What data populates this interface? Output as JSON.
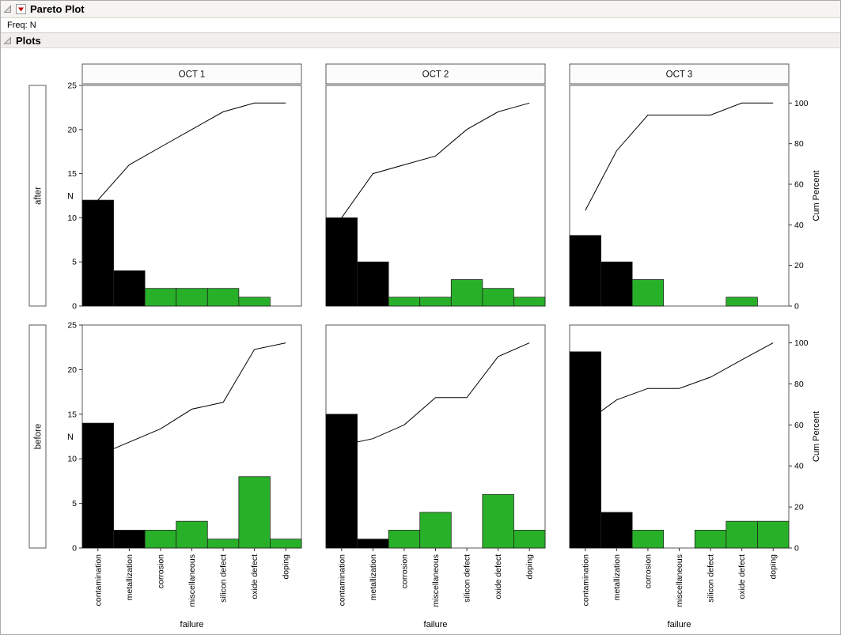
{
  "header": {
    "title": "Pareto Plot"
  },
  "freq": {
    "label": "Freq: N"
  },
  "plots_section": {
    "label": "Plots"
  },
  "chart_data": {
    "type": "bar",
    "title": "Pareto Plot",
    "subtitle": "Pareto chart small-multiples grid: rows = group (after/before), columns = date (OCT 1-3)",
    "categories": [
      "contamination",
      "metallization",
      "corrosion",
      "miscellaneous",
      "silicon defect",
      "oxide defect",
      "doping"
    ],
    "xlabel": "failure",
    "ylabel": "N",
    "y2label": "Cum Percent",
    "ylim": [
      0,
      25
    ],
    "yticks": [
      0,
      5,
      10,
      15,
      20,
      25
    ],
    "y2ticks": [
      0,
      20,
      40,
      60,
      80,
      100
    ],
    "y2_100_at_N": 23,
    "rows": [
      "after",
      "before"
    ],
    "cols": [
      "OCT 1",
      "OCT 2",
      "OCT 3"
    ],
    "black_bar_count": 2,
    "legend": "none",
    "grid": "off",
    "colors": {
      "bar_primary": "#000000",
      "bar_secondary": "#29b029",
      "line": "#000000",
      "frame": "#5a5a5a"
    },
    "panels": [
      {
        "row": "after",
        "col": "OCT 1",
        "values": [
          12,
          4,
          2,
          2,
          2,
          1,
          0
        ],
        "total": 23,
        "cum_percent": [
          52.2,
          69.6,
          78.3,
          87.0,
          95.7,
          100.0,
          100.0
        ]
      },
      {
        "row": "after",
        "col": "OCT 2",
        "values": [
          10,
          5,
          1,
          1,
          3,
          2,
          1
        ],
        "total": 23,
        "cum_percent": [
          43.5,
          65.2,
          69.6,
          73.9,
          87.0,
          95.7,
          100.0
        ]
      },
      {
        "row": "after",
        "col": "OCT 3",
        "values": [
          8,
          5,
          3,
          0,
          0,
          1,
          0
        ],
        "total": 17,
        "cum_percent": [
          47.1,
          76.5,
          94.1,
          94.1,
          94.1,
          100.0,
          100.0
        ]
      },
      {
        "row": "before",
        "col": "OCT 1",
        "values": [
          14,
          2,
          2,
          3,
          1,
          8,
          1
        ],
        "total": 31,
        "cum_percent": [
          45.2,
          51.6,
          58.1,
          67.7,
          71.0,
          96.8,
          100.0
        ]
      },
      {
        "row": "before",
        "col": "OCT 2",
        "values": [
          15,
          1,
          2,
          4,
          0,
          6,
          2
        ],
        "total": 30,
        "cum_percent": [
          50.0,
          53.3,
          60.0,
          73.3,
          73.3,
          93.3,
          100.0
        ]
      },
      {
        "row": "before",
        "col": "OCT 3",
        "values": [
          22,
          4,
          2,
          0,
          2,
          3,
          3
        ],
        "total": 36,
        "cum_percent": [
          61.1,
          72.2,
          77.8,
          77.8,
          83.3,
          91.7,
          100.0
        ]
      }
    ]
  }
}
